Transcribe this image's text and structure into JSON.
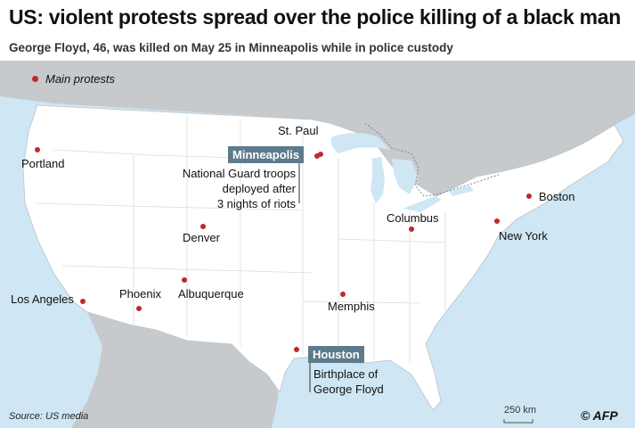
{
  "header": {
    "title": "US: violent protests spread over the police killing of a black man",
    "subtitle": "George Floyd, 46, was killed on May 25 in Minneapolis while in police custody"
  },
  "legend": {
    "label": "Main protests"
  },
  "cities": {
    "st_paul": "St. Paul",
    "portland": "Portland",
    "denver": "Denver",
    "columbus": "Columbus",
    "boston": "Boston",
    "new_york": "New York",
    "los_angeles": "Los Angeles",
    "phoenix": "Phoenix",
    "albuquerque": "Albuquerque",
    "memphis": "Memphis"
  },
  "highlights": {
    "minneapolis": {
      "label": "Minneapolis",
      "note": [
        "National Guard troops",
        "deployed after",
        "3 nights of riots"
      ]
    },
    "houston": {
      "label": "Houston",
      "note": [
        "Birthplace of",
        "George Floyd"
      ]
    }
  },
  "footer": {
    "source": "Source: US media",
    "scale": "250 km",
    "logo": "© AFP"
  },
  "colors": {
    "water": "#cfe6f4",
    "land_us": "#ffffff",
    "land_other": "#c6cacd",
    "marker": "#c0282d",
    "tag_bg": "#5d7b8c"
  }
}
